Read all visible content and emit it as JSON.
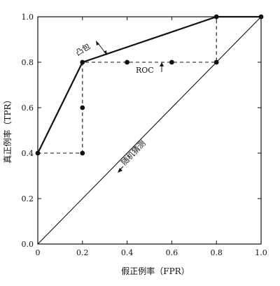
{
  "chart_data": {
    "type": "line",
    "xlabel": "假正例率（FPR）",
    "ylabel": "真正例率（TPR）",
    "xlim": [
      0,
      1
    ],
    "ylim": [
      0,
      1
    ],
    "x_ticks": [
      "0",
      "0.2",
      "0.4",
      "0.6",
      "0.8",
      "1.0"
    ],
    "y_ticks": [
      "0.0",
      "0.2",
      "0.4",
      "0.6",
      "0.8",
      "1.0"
    ],
    "grid": false,
    "series": [
      {
        "name": "凸包",
        "style": "solid",
        "points": [
          [
            0,
            0.4
          ],
          [
            0.2,
            0.8
          ],
          [
            0.8,
            1.0
          ],
          [
            1.0,
            1.0
          ]
        ]
      },
      {
        "name": "ROC",
        "style": "dashed",
        "points": [
          [
            0,
            0.4
          ],
          [
            0.2,
            0.4
          ],
          [
            0.2,
            0.6
          ],
          [
            0.2,
            0.8
          ],
          [
            0.4,
            0.8
          ],
          [
            0.6,
            0.8
          ],
          [
            0.8,
            0.8
          ],
          [
            0.8,
            1.0
          ],
          [
            1.0,
            1.0
          ]
        ]
      },
      {
        "name": "随机猜测",
        "style": "solid",
        "points": [
          [
            0,
            0
          ],
          [
            1.0,
            1.0
          ]
        ]
      }
    ],
    "markers": [
      [
        0,
        0.4
      ],
      [
        0.2,
        0.4
      ],
      [
        0.2,
        0.6
      ],
      [
        0.2,
        0.8
      ],
      [
        0.4,
        0.8
      ],
      [
        0.6,
        0.8
      ],
      [
        0.8,
        0.8
      ],
      [
        0.8,
        1.0
      ],
      [
        1.0,
        1.0
      ]
    ],
    "annotations": {
      "hull": "凸包",
      "roc": "ROC",
      "random": "随机猜测"
    }
  }
}
